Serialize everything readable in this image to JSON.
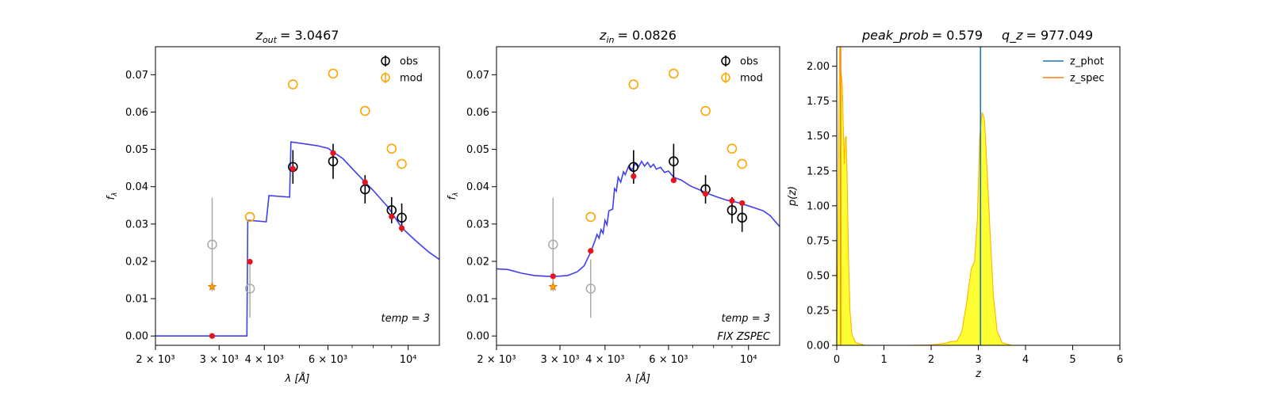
{
  "colors": {
    "obs": "#000000",
    "obs_excluded": "#aaaaaa",
    "mod": "#ffa500",
    "model_line": "#3f3ff0",
    "model_points": "#e8141c",
    "z_phot": "#1f77b4",
    "z_spec": "#ff7f0e",
    "pz_fill": "#ffff33",
    "pz_line": "#ffb300"
  },
  "chart_data": [
    {
      "type": "scatter",
      "panel": "sed_zout",
      "title_var": "z",
      "title_sub": "out",
      "title_value": "= 3.0467",
      "xlabel_base": "λ [",
      "xlabel_unit": "Å",
      "xlabel_close": "]",
      "ylabel": "f",
      "ylabel_sub": "λ",
      "xscale": "log",
      "xlim": [
        2000,
        12200
      ],
      "ylim": [
        -0.0025,
        0.0775
      ],
      "xticks_major": [
        {
          "value": 2000,
          "label": "2 × 10³"
        },
        {
          "value": 3000,
          "label": "3 × 10³"
        },
        {
          "value": 4000,
          "label": "4 × 10³"
        },
        {
          "value": 6000,
          "label": "6 × 10³"
        },
        {
          "value": 10000,
          "label": "10⁴"
        }
      ],
      "xticks_minor": [
        5000,
        7000,
        8000,
        9000
      ],
      "yticks": [
        "0.00",
        "0.01",
        "0.02",
        "0.03",
        "0.04",
        "0.05",
        "0.06",
        "0.07"
      ],
      "legend": [
        {
          "label": "obs",
          "kind": "obs"
        },
        {
          "label": "mod",
          "kind": "mod"
        }
      ],
      "annotations": [
        "temp = 3"
      ],
      "obs": [
        {
          "x": 4800,
          "y": 0.0453,
          "err": 0.0045
        },
        {
          "x": 6200,
          "y": 0.0468,
          "err": 0.0047
        },
        {
          "x": 7600,
          "y": 0.0393,
          "err": 0.0038
        },
        {
          "x": 9000,
          "y": 0.0337,
          "err": 0.0035
        },
        {
          "x": 9600,
          "y": 0.0317,
          "err": 0.0038
        }
      ],
      "obs_excluded": [
        {
          "x": 2870,
          "y": 0.0245,
          "err": 0.0125
        },
        {
          "x": 3650,
          "y": 0.0127,
          "err": 0.0078
        }
      ],
      "mod": [
        {
          "x": 2870,
          "y": 0.0132,
          "marker": "star"
        },
        {
          "x": 3650,
          "y": 0.0319
        },
        {
          "x": 4800,
          "y": 0.0674
        },
        {
          "x": 6200,
          "y": 0.0703
        },
        {
          "x": 7600,
          "y": 0.0603
        },
        {
          "x": 9000,
          "y": 0.0502
        },
        {
          "x": 9600,
          "y": 0.0461
        }
      ],
      "model_points": [
        {
          "x": 2870,
          "y": 0.0
        },
        {
          "x": 3650,
          "y": 0.0199
        },
        {
          "x": 4800,
          "y": 0.0448
        },
        {
          "x": 6200,
          "y": 0.049
        },
        {
          "x": 7600,
          "y": 0.0412
        },
        {
          "x": 9000,
          "y": 0.032
        },
        {
          "x": 9600,
          "y": 0.0289
        }
      ],
      "model_line": [
        [
          2000,
          0.0
        ],
        [
          3580,
          0.0
        ],
        [
          3600,
          0.031
        ],
        [
          4050,
          0.0306
        ],
        [
          4120,
          0.0376
        ],
        [
          4700,
          0.0372
        ],
        [
          4740,
          0.052
        ],
        [
          5600,
          0.051
        ],
        [
          6000,
          0.0503
        ],
        [
          6600,
          0.0475
        ],
        [
          7300,
          0.043
        ],
        [
          8000,
          0.039
        ],
        [
          8800,
          0.0345
        ],
        [
          9600,
          0.029
        ],
        [
          10500,
          0.0255
        ],
        [
          11400,
          0.0225
        ],
        [
          12200,
          0.0205
        ]
      ]
    },
    {
      "type": "scatter",
      "panel": "sed_zin",
      "title_var": "z",
      "title_sub": "in",
      "title_value": "= 0.0826",
      "xlabel_base": "λ [",
      "xlabel_unit": "Å",
      "xlabel_close": "]",
      "ylabel": "f",
      "ylabel_sub": "λ",
      "xscale": "log",
      "xlim": [
        2000,
        12200
      ],
      "ylim": [
        -0.0025,
        0.0775
      ],
      "xticks_major": [
        {
          "value": 2000,
          "label": "2 × 10³"
        },
        {
          "value": 3000,
          "label": "3 × 10³"
        },
        {
          "value": 4000,
          "label": "4 × 10³"
        },
        {
          "value": 6000,
          "label": "6 × 10³"
        },
        {
          "value": 10000,
          "label": "10⁴"
        }
      ],
      "xticks_minor": [
        5000,
        7000,
        8000,
        9000
      ],
      "yticks": [
        "0.00",
        "0.01",
        "0.02",
        "0.03",
        "0.04",
        "0.05",
        "0.06",
        "0.07"
      ],
      "legend": [
        {
          "label": "obs",
          "kind": "obs"
        },
        {
          "label": "mod",
          "kind": "mod"
        }
      ],
      "annotations": [
        "temp = 3",
        "FIX ZSPEC"
      ],
      "obs": [
        {
          "x": 4800,
          "y": 0.0453,
          "err": 0.0045
        },
        {
          "x": 6200,
          "y": 0.0468,
          "err": 0.0047
        },
        {
          "x": 7600,
          "y": 0.0393,
          "err": 0.0038
        },
        {
          "x": 9000,
          "y": 0.0337,
          "err": 0.0035
        },
        {
          "x": 9600,
          "y": 0.0317,
          "err": 0.0038
        }
      ],
      "obs_excluded": [
        {
          "x": 2870,
          "y": 0.0245,
          "err": 0.0125
        },
        {
          "x": 3650,
          "y": 0.0127,
          "err": 0.0078
        }
      ],
      "mod": [
        {
          "x": 2870,
          "y": 0.0132,
          "marker": "star"
        },
        {
          "x": 3650,
          "y": 0.0319
        },
        {
          "x": 4800,
          "y": 0.0674
        },
        {
          "x": 6200,
          "y": 0.0703
        },
        {
          "x": 7600,
          "y": 0.0603
        },
        {
          "x": 9000,
          "y": 0.0502
        },
        {
          "x": 9600,
          "y": 0.0461
        }
      ],
      "model_points": [
        {
          "x": 2870,
          "y": 0.016
        },
        {
          "x": 3650,
          "y": 0.0228
        },
        {
          "x": 4800,
          "y": 0.0428
        },
        {
          "x": 6200,
          "y": 0.0417
        },
        {
          "x": 7600,
          "y": 0.0381
        },
        {
          "x": 9000,
          "y": 0.0362
        },
        {
          "x": 9600,
          "y": 0.0356
        }
      ],
      "model_line": [
        [
          2000,
          0.018
        ],
        [
          2150,
          0.0178
        ],
        [
          2350,
          0.0168
        ],
        [
          2550,
          0.0162
        ],
        [
          2750,
          0.016
        ],
        [
          2950,
          0.016
        ],
        [
          3150,
          0.0162
        ],
        [
          3350,
          0.0172
        ],
        [
          3500,
          0.0188
        ],
        [
          3650,
          0.0225
        ],
        [
          3750,
          0.0255
        ],
        [
          3800,
          0.0272
        ],
        [
          3850,
          0.0262
        ],
        [
          3900,
          0.0285
        ],
        [
          3950,
          0.0275
        ],
        [
          4000,
          0.031
        ],
        [
          4050,
          0.0298
        ],
        [
          4100,
          0.0335
        ],
        [
          4200,
          0.034
        ],
        [
          4250,
          0.0395
        ],
        [
          4300,
          0.0388
        ],
        [
          4350,
          0.0425
        ],
        [
          4420,
          0.0412
        ],
        [
          4500,
          0.044
        ],
        [
          4550,
          0.0432
        ],
        [
          4650,
          0.0455
        ],
        [
          4750,
          0.0445
        ],
        [
          4850,
          0.0462
        ],
        [
          4950,
          0.0452
        ],
        [
          5050,
          0.0468
        ],
        [
          5150,
          0.0455
        ],
        [
          5250,
          0.0465
        ],
        [
          5350,
          0.0452
        ],
        [
          5450,
          0.046
        ],
        [
          5550,
          0.0447
        ],
        [
          5700,
          0.0452
        ],
        [
          5850,
          0.0438
        ],
        [
          6000,
          0.0442
        ],
        [
          6200,
          0.0425
        ],
        [
          6500,
          0.0418
        ],
        [
          6900,
          0.0402
        ],
        [
          7300,
          0.0392
        ],
        [
          7700,
          0.0382
        ],
        [
          8200,
          0.0372
        ],
        [
          8700,
          0.0364
        ],
        [
          9300,
          0.0358
        ],
        [
          9900,
          0.035
        ],
        [
          10500,
          0.0342
        ],
        [
          11000,
          0.0335
        ],
        [
          11500,
          0.0322
        ],
        [
          11900,
          0.0305
        ],
        [
          12200,
          0.0293
        ]
      ]
    },
    {
      "type": "area",
      "panel": "pz",
      "title_left_var": "peak_prob",
      "title_left_value": "= 0.579",
      "title_right_var": "q_z",
      "title_right_value": "= 977.049",
      "xlabel": "z",
      "ylabel": "p(z)",
      "xlim": [
        0,
        6
      ],
      "ylim": [
        0,
        2.14
      ],
      "xticks": [
        "0",
        "1",
        "2",
        "3",
        "4",
        "5",
        "6"
      ],
      "yticks": [
        "0.00",
        "0.25",
        "0.50",
        "0.75",
        "1.00",
        "1.25",
        "1.50",
        "1.75",
        "2.00"
      ],
      "legend": [
        {
          "label": "z_phot",
          "kind": "z_phot"
        },
        {
          "label": "z_spec",
          "kind": "z_spec"
        }
      ],
      "z_phot": 3.0467,
      "z_spec": 0.0826,
      "pz": [
        [
          0.0,
          0.0
        ],
        [
          0.02,
          0.6
        ],
        [
          0.04,
          1.4
        ],
        [
          0.06,
          2.12
        ],
        [
          0.07,
          2.14
        ],
        [
          0.08,
          1.98
        ],
        [
          0.1,
          1.93
        ],
        [
          0.12,
          1.85
        ],
        [
          0.14,
          1.55
        ],
        [
          0.16,
          1.3
        ],
        [
          0.18,
          1.48
        ],
        [
          0.2,
          1.5
        ],
        [
          0.22,
          1.2
        ],
        [
          0.25,
          0.6
        ],
        [
          0.28,
          0.25
        ],
        [
          0.32,
          0.08
        ],
        [
          0.4,
          0.02
        ],
        [
          0.6,
          0.0
        ],
        [
          1.0,
          0.0
        ],
        [
          1.5,
          0.0
        ],
        [
          2.0,
          0.003
        ],
        [
          2.3,
          0.015
        ],
        [
          2.4,
          0.025
        ],
        [
          2.55,
          0.03
        ],
        [
          2.65,
          0.1
        ],
        [
          2.75,
          0.3
        ],
        [
          2.85,
          0.55
        ],
        [
          2.92,
          0.6
        ],
        [
          2.98,
          0.9
        ],
        [
          3.03,
          1.5
        ],
        [
          3.08,
          1.67
        ],
        [
          3.13,
          1.62
        ],
        [
          3.18,
          1.3
        ],
        [
          3.25,
          0.8
        ],
        [
          3.32,
          0.35
        ],
        [
          3.4,
          0.1
        ],
        [
          3.5,
          0.02
        ],
        [
          3.7,
          0.0
        ],
        [
          5.0,
          0.0
        ]
      ]
    }
  ]
}
